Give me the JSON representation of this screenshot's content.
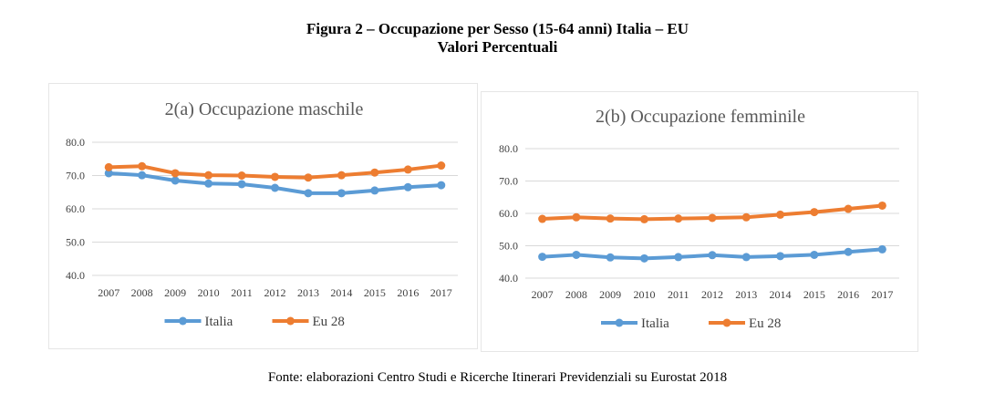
{
  "figure": {
    "title": "Figura 2 – Occupazione per Sesso (15-64 anni) Italia – EU",
    "subtitle": "Valori Percentuali",
    "source": "Fonte: elaborazioni Centro Studi e Ricerche Itinerari Previdenziali su Eurostat 2018"
  },
  "colors": {
    "italia": "#5b9bd5",
    "eu28": "#ed7d31",
    "grid": "#d9d9d9",
    "axis_text": "#404040"
  },
  "chart_data": [
    {
      "type": "line",
      "title": "2(a) Occupazione maschile",
      "categories": [
        "2007",
        "2008",
        "2009",
        "2010",
        "2011",
        "2012",
        "2013",
        "2014",
        "2015",
        "2016",
        "2017"
      ],
      "ylim": [
        40,
        80
      ],
      "yticks": [
        "40.0",
        "50.0",
        "60.0",
        "70.0",
        "80.0"
      ],
      "grid": true,
      "legend_position": "bottom",
      "series": [
        {
          "name": "Italia",
          "color": "#5b9bd5",
          "values": [
            70.7,
            70.1,
            68.5,
            67.6,
            67.4,
            66.3,
            64.7,
            64.7,
            65.5,
            66.5,
            67.1
          ]
        },
        {
          "name": "Eu 28",
          "color": "#ed7d31",
          "values": [
            72.5,
            72.8,
            70.7,
            70.1,
            70.0,
            69.6,
            69.4,
            70.1,
            70.9,
            71.8,
            73.0
          ]
        }
      ]
    },
    {
      "type": "line",
      "title": "2(b) Occupazione femminile",
      "categories": [
        "2007",
        "2008",
        "2009",
        "2010",
        "2011",
        "2012",
        "2013",
        "2014",
        "2015",
        "2016",
        "2017"
      ],
      "ylim": [
        40,
        80
      ],
      "yticks": [
        "40.0",
        "50.0",
        "60.0",
        "70.0",
        "80.0"
      ],
      "grid": true,
      "legend_position": "bottom",
      "series": [
        {
          "name": "Italia",
          "color": "#5b9bd5",
          "values": [
            46.6,
            47.2,
            46.4,
            46.1,
            46.5,
            47.1,
            46.5,
            46.8,
            47.2,
            48.1,
            48.9
          ]
        },
        {
          "name": "Eu 28",
          "color": "#ed7d31",
          "values": [
            58.3,
            58.8,
            58.4,
            58.2,
            58.4,
            58.6,
            58.8,
            59.6,
            60.4,
            61.4,
            62.4
          ]
        }
      ]
    }
  ]
}
